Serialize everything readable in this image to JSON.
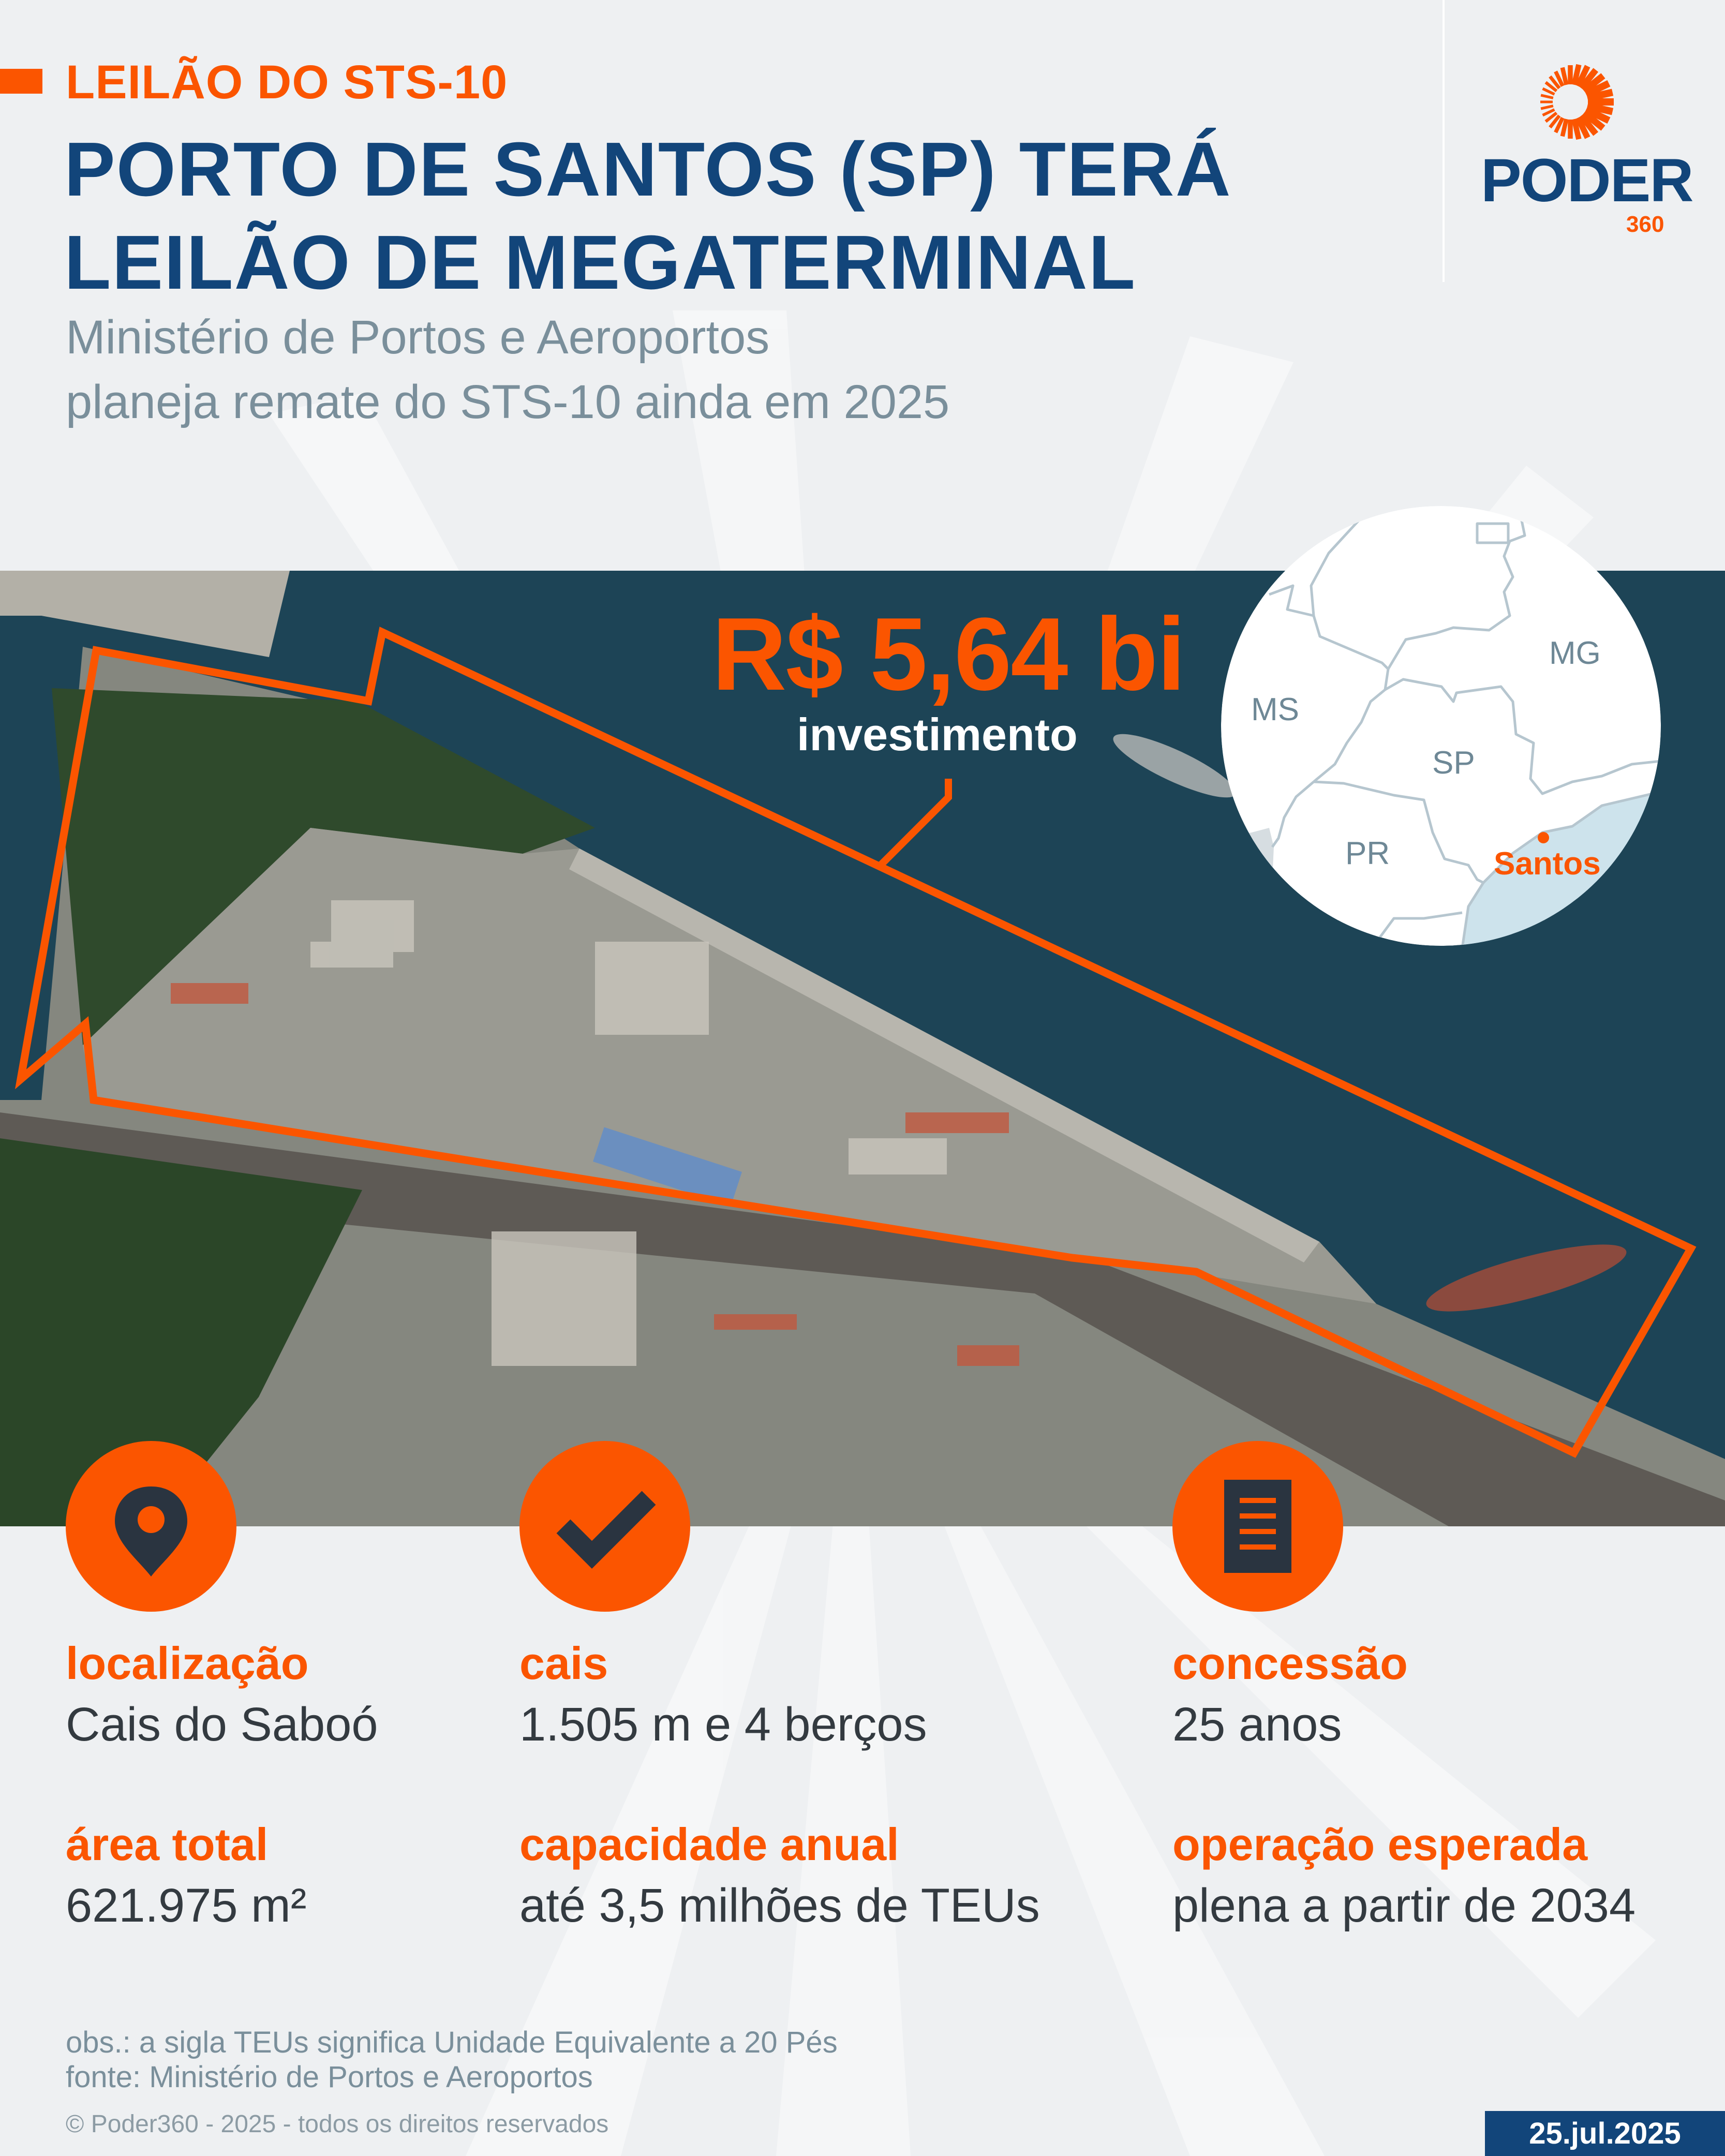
{
  "header": {
    "kicker": "LEILÃO DO STS-10",
    "title_line1": "PORTO DE SANTOS (SP) TERÁ",
    "title_line2": "LEILÃO DE MEGATERMINAL",
    "subtitle_line1": "Ministério de Portos e Aeroportos",
    "subtitle_line2": "planeja remate do STS-10 ainda em 2025"
  },
  "logo": {
    "word": "PODER",
    "number": "360"
  },
  "highlight": {
    "value": "R$ 5,64 bi",
    "label": "investimento"
  },
  "map": {
    "states": [
      "MS",
      "MG",
      "SP",
      "PR"
    ],
    "city": "Santos"
  },
  "facts": [
    {
      "icon": "map-pin-icon",
      "label": "localização",
      "value": "Cais do Saboó",
      "label2": "área total",
      "value2": "621.975 m²"
    },
    {
      "icon": "checkmark-icon",
      "label": "cais",
      "value": "1.505 m e 4 berços",
      "label2": "capacidade anual",
      "value2": "até 3,5 milhões de TEUs"
    },
    {
      "icon": "document-icon",
      "label": "concessão",
      "value": "25 anos",
      "label2": "operação esperada",
      "value2": "plena a partir de 2034"
    }
  ],
  "footer": {
    "obs": "obs.: a sigla TEUs significa Unidade Equivalente a 20 Pés",
    "source": "fonte: Ministério de Portos e Aeroportos",
    "copyright": "© Poder360 - 2025 - todos os direitos reservados",
    "date": "25.jul.2025"
  },
  "colors": {
    "accent": "#fb5500",
    "navy": "#12457a",
    "muted": "#7a8f9b",
    "water": "#1d4456"
  }
}
